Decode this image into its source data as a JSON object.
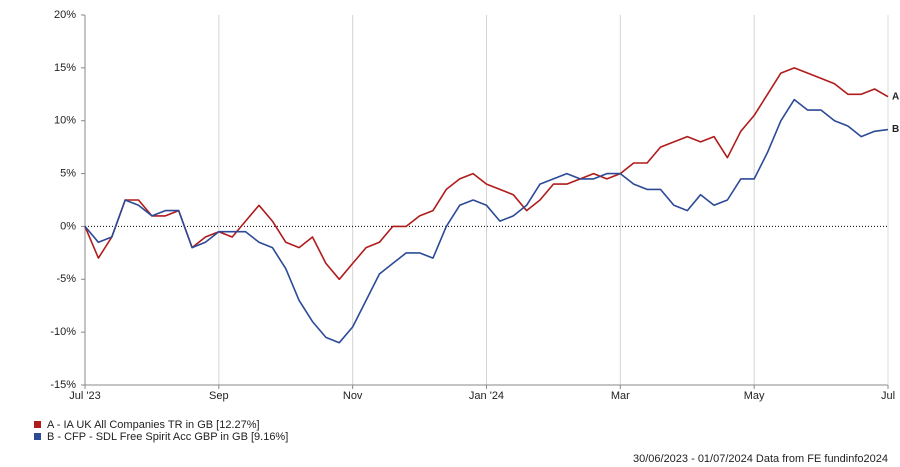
{
  "chart_data": {
    "type": "line",
    "categories": [
      "Jul '23",
      null,
      null,
      null,
      null,
      null,
      null,
      null,
      null,
      null,
      "Sep",
      null,
      null,
      null,
      null,
      null,
      null,
      null,
      null,
      null,
      "Nov",
      null,
      null,
      null,
      null,
      null,
      null,
      null,
      null,
      null,
      "Jan '24",
      null,
      null,
      null,
      null,
      null,
      null,
      null,
      null,
      null,
      "Mar",
      null,
      null,
      null,
      null,
      null,
      null,
      null,
      null,
      null,
      "May",
      null,
      null,
      null,
      null,
      null,
      null,
      null,
      null,
      null,
      "Jul"
    ],
    "series": [
      {
        "name": "A - IA UK All Companies TR in GB [12.27%]",
        "label": "A",
        "color": "#b01c1c",
        "values": [
          0,
          -3,
          -1,
          2.5,
          2.5,
          1,
          1,
          1.5,
          -2,
          -1,
          -0.5,
          -1,
          0.5,
          2,
          0.5,
          -1.5,
          -2,
          -1,
          -3.5,
          -5,
          -3.5,
          -2,
          -1.5,
          0,
          0,
          1,
          1.5,
          3.5,
          4.5,
          5,
          4,
          3.5,
          3,
          1.5,
          2.5,
          4,
          4,
          4.5,
          5,
          4.5,
          5,
          6,
          6,
          7.5,
          8,
          8.5,
          8,
          8.5,
          6.5,
          9,
          10.5,
          12.5,
          14.5,
          15,
          14.5,
          14,
          13.5,
          12.5,
          12.5,
          13,
          12.27
        ]
      },
      {
        "name": "B - CFP - SDL Free Spirit Acc GBP in GB [9.16%]",
        "label": "B",
        "color": "#2c4a96",
        "values": [
          0,
          -1.5,
          -1,
          2.5,
          2,
          1,
          1.5,
          1.5,
          -2,
          -1.5,
          -0.5,
          -0.5,
          -0.5,
          -1.5,
          -2,
          -4,
          -7,
          -9,
          -10.5,
          -11,
          -9.5,
          -7,
          -4.5,
          -3.5,
          -2.5,
          -2.5,
          -3,
          0,
          2,
          2.5,
          2,
          0.5,
          1,
          2,
          4,
          4.5,
          5,
          4.5,
          4.5,
          5,
          5,
          4,
          3.5,
          3.5,
          2,
          1.5,
          3,
          2,
          2.5,
          4.5,
          4.5,
          7,
          10,
          12,
          11,
          11,
          10,
          9.5,
          8.5,
          9,
          9.16
        ]
      }
    ],
    "ylim": [
      -15,
      20
    ],
    "yticks": [
      {
        "value": -15,
        "label": "-15%"
      },
      {
        "value": -10,
        "label": "-10%"
      },
      {
        "value": -5,
        "label": "-5%"
      },
      {
        "value": 0,
        "label": "0%"
      },
      {
        "value": 5,
        "label": "5%"
      },
      {
        "value": 10,
        "label": "10%"
      },
      {
        "value": 15,
        "label": "15%"
      },
      {
        "value": 20,
        "label": "20%"
      }
    ],
    "grid": true,
    "zero_line": true,
    "footer": "30/06/2023 - 01/07/2024 Data from FE fundinfo2024"
  }
}
